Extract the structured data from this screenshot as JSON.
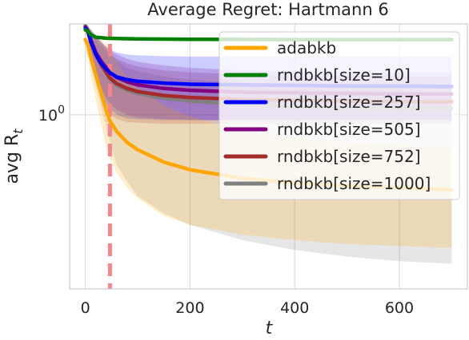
{
  "chart_data": {
    "type": "line",
    "title": "Average Regret: Hartmann 6",
    "xlabel": "t",
    "ylabel_main": "avg R",
    "ylabel_sub": "t",
    "xlim": [
      -30,
      730
    ],
    "ylim_log10": [
      -0.9,
      0.47
    ],
    "y_scale": "log",
    "grid": true,
    "legend_position": "top-right",
    "x_ticks": [
      0,
      200,
      400,
      600
    ],
    "x_tick_labels": [
      "0",
      "200",
      "400",
      "600"
    ],
    "y_ticks": [
      1.0
    ],
    "y_tick_base": "10",
    "y_tick_exp": "0",
    "vline": {
      "x": 47,
      "color": "#f4858a",
      "style": "dashed"
    },
    "series": [
      {
        "name": "adabkb",
        "color": "#ffa500",
        "x": [
          0,
          5,
          10,
          20,
          30,
          40,
          47,
          60,
          80,
          100,
          150,
          200,
          300,
          400,
          500,
          600,
          700
        ],
        "y": [
          2.45,
          2.3,
          2.0,
          1.6,
          1.3,
          1.05,
          0.93,
          0.82,
          0.72,
          0.66,
          0.57,
          0.52,
          0.47,
          0.445,
          0.43,
          0.42,
          0.41
        ],
        "lower": [
          2.2,
          1.95,
          1.6,
          1.2,
          0.9,
          0.68,
          0.6,
          0.5,
          0.42,
          0.37,
          0.3,
          0.27,
          0.24,
          0.225,
          0.215,
          0.21,
          0.205
        ],
        "upper": [
          2.7,
          2.75,
          2.7,
          2.6,
          2.45,
          2.3,
          2.2,
          1.85,
          1.55,
          1.38,
          1.12,
          0.98,
          0.83,
          0.76,
          0.72,
          0.7,
          0.68
        ]
      },
      {
        "name": "rndbkb[size=10]",
        "color": "#008000",
        "x": [
          0,
          5,
          10,
          20,
          40,
          60,
          100,
          200,
          400,
          700
        ],
        "y": [
          2.75,
          2.7,
          2.6,
          2.52,
          2.49,
          2.48,
          2.47,
          2.46,
          2.45,
          2.45
        ],
        "lower": [
          2.7,
          2.65,
          2.55,
          2.47,
          2.44,
          2.43,
          2.42,
          2.41,
          2.4,
          2.4
        ],
        "upper": [
          2.8,
          2.75,
          2.65,
          2.57,
          2.54,
          2.53,
          2.52,
          2.51,
          2.5,
          2.5
        ]
      },
      {
        "name": "rndbkb[size=257]",
        "color": "#0000ff",
        "x": [
          0,
          5,
          10,
          20,
          30,
          40,
          47,
          60,
          80,
          100,
          150,
          200,
          300,
          400,
          500,
          600,
          700
        ],
        "y": [
          2.8,
          2.7,
          2.4,
          2.05,
          1.85,
          1.72,
          1.65,
          1.57,
          1.52,
          1.49,
          1.46,
          1.44,
          1.43,
          1.42,
          1.41,
          1.41,
          1.4
        ],
        "lower": [
          2.7,
          2.5,
          2.0,
          1.55,
          1.3,
          1.15,
          1.08,
          1.0,
          0.96,
          0.95,
          0.94,
          0.94,
          0.94,
          0.94,
          0.94,
          0.94,
          0.94
        ],
        "upper": [
          2.9,
          2.85,
          2.75,
          2.55,
          2.38,
          2.25,
          2.18,
          2.1,
          2.05,
          2.03,
          2.01,
          2.0,
          2.0,
          2.0,
          2.0,
          2.0,
          2.0
        ]
      },
      {
        "name": "rndbkb[size=505]",
        "color": "#800080",
        "x": [
          0,
          5,
          10,
          20,
          30,
          40,
          47,
          60,
          80,
          100,
          150,
          200,
          300,
          400,
          500,
          600,
          700
        ],
        "y": [
          2.85,
          2.7,
          2.45,
          2.1,
          1.9,
          1.75,
          1.65,
          1.56,
          1.48,
          1.43,
          1.37,
          1.34,
          1.31,
          1.3,
          1.29,
          1.28,
          1.28
        ],
        "lower": [
          2.75,
          2.5,
          2.1,
          1.65,
          1.4,
          1.22,
          1.15,
          1.06,
          1.0,
          0.97,
          0.95,
          0.94,
          0.93,
          0.93,
          0.93,
          0.93,
          0.93
        ],
        "upper": [
          2.95,
          2.85,
          2.75,
          2.55,
          2.38,
          2.25,
          2.15,
          2.05,
          1.95,
          1.88,
          1.8,
          1.75,
          1.7,
          1.68,
          1.67,
          1.66,
          1.66
        ]
      },
      {
        "name": "rndbkb[size=752]",
        "color": "#a52a2a",
        "x": [
          0,
          5,
          10,
          20,
          30,
          40,
          47,
          60,
          80,
          100,
          150,
          200,
          300,
          400,
          500,
          600,
          700
        ],
        "y": [
          2.85,
          2.7,
          2.45,
          2.05,
          1.82,
          1.65,
          1.55,
          1.45,
          1.37,
          1.32,
          1.26,
          1.23,
          1.2,
          1.19,
          1.18,
          1.17,
          1.17
        ],
        "lower": [
          2.75,
          2.5,
          2.05,
          1.55,
          1.28,
          1.1,
          1.02,
          0.95,
          0.92,
          0.91,
          0.9,
          0.9,
          0.9,
          0.9,
          0.9,
          0.9,
          0.9
        ],
        "upper": [
          2.95,
          2.85,
          2.72,
          2.5,
          2.3,
          2.15,
          2.05,
          1.95,
          1.85,
          1.78,
          1.7,
          1.66,
          1.62,
          1.6,
          1.59,
          1.58,
          1.58
        ]
      },
      {
        "name": "rndbkb[size=1000]",
        "color": "#808080",
        "x": [
          0,
          5,
          10,
          20,
          30,
          40,
          47,
          60,
          80,
          100,
          150,
          200,
          300,
          400,
          500,
          600,
          700
        ],
        "y": [
          2.9,
          2.75,
          2.5,
          2.1,
          1.85,
          1.65,
          1.53,
          1.42,
          1.34,
          1.29,
          1.22,
          1.18,
          1.13,
          1.1,
          1.09,
          1.08,
          1.08
        ],
        "lower": [
          2.8,
          2.5,
          2.0,
          1.45,
          1.1,
          0.85,
          0.72,
          0.55,
          0.45,
          0.38,
          0.31,
          0.27,
          0.225,
          0.2,
          0.185,
          0.175,
          0.17
        ],
        "upper": [
          3.0,
          2.9,
          2.8,
          2.6,
          2.4,
          2.2,
          2.1,
          1.9,
          1.75,
          1.68,
          1.58,
          1.52,
          1.46,
          1.43,
          1.42,
          1.41,
          1.41
        ]
      }
    ]
  }
}
